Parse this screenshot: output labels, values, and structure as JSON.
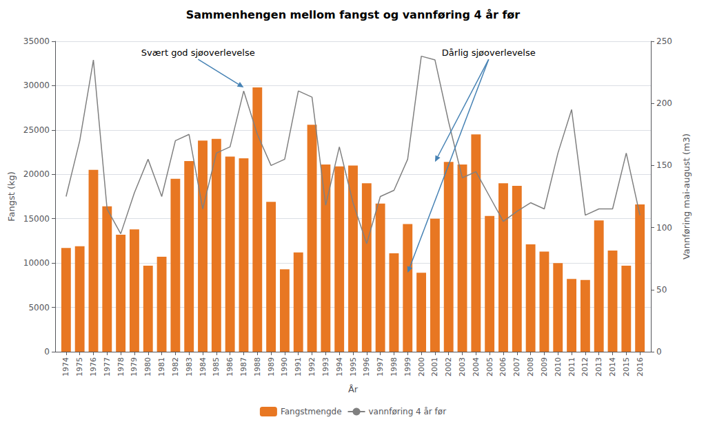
{
  "chart_data": {
    "type": "bar",
    "title": "Sammenhengen mellom fangst og vannføring 4 år før",
    "xlabel": "År",
    "ylabel": "Fangst (kg)",
    "y2label": "Vannføring mai-august (m3)",
    "x": [
      1974,
      1975,
      1976,
      1977,
      1978,
      1979,
      1980,
      1981,
      1982,
      1983,
      1984,
      1985,
      1986,
      1987,
      1988,
      1989,
      1990,
      1991,
      1992,
      1993,
      1994,
      1995,
      1996,
      1997,
      1998,
      1999,
      2000,
      2001,
      2002,
      2003,
      2004,
      2005,
      2006,
      2007,
      2008,
      2009,
      2010,
      2011,
      2012,
      2013,
      2014,
      2015,
      2016
    ],
    "xlim": [
      1973.2,
      2016.8
    ],
    "xticks": [
      1974,
      1975,
      1976,
      1977,
      1978,
      1979,
      1980,
      1981,
      1982,
      1983,
      1984,
      1985,
      1986,
      1987,
      1988,
      1989,
      1990,
      1991,
      1992,
      1993,
      1994,
      1995,
      1996,
      1997,
      1998,
      1999,
      2000,
      2001,
      2002,
      2003,
      2004,
      2005,
      2006,
      2007,
      2008,
      2009,
      2010,
      2011,
      2012,
      2013,
      2014,
      2015,
      2016
    ],
    "ylim": [
      0,
      35000
    ],
    "yticks": [
      0,
      5000,
      10000,
      15000,
      20000,
      25000,
      30000,
      35000
    ],
    "y2lim": [
      0,
      250
    ],
    "y2ticks": [
      0,
      50,
      100,
      150,
      200,
      250
    ],
    "grid": true,
    "legend": "bottom",
    "series": [
      {
        "name": "Fangstmengde",
        "type": "bar",
        "color": "#E87722",
        "values": [
          11700,
          11900,
          20500,
          16400,
          13200,
          13800,
          9700,
          10700,
          19500,
          21500,
          23800,
          24000,
          22000,
          21800,
          29800,
          16900,
          9300,
          11200,
          25600,
          21100,
          20900,
          21000,
          19000,
          16700,
          11100,
          14400,
          8900,
          15000,
          21400,
          21100,
          24500,
          15300,
          19000,
          18700,
          12100,
          11300,
          10000,
          8200,
          8100,
          14800,
          11400,
          9700,
          16600
        ]
      },
      {
        "name": "vannføring 4 år før",
        "type": "line",
        "color": "#808080",
        "axis": "y2",
        "values": [
          125,
          170,
          235,
          115,
          95,
          128,
          155,
          125,
          170,
          175,
          115,
          160,
          165,
          210,
          175,
          150,
          155,
          210,
          205,
          118,
          165,
          120,
          87,
          125,
          130,
          155,
          238,
          235,
          185,
          140,
          145,
          125,
          105,
          113,
          120,
          115,
          160,
          195,
          110,
          115,
          115,
          160,
          110
        ]
      }
    ],
    "annotations": [
      {
        "text": "Svært god sjøoverlevelse",
        "x": 1979.5,
        "y": 33200,
        "color": "steelblue",
        "arrows": [
          [
            1987,
            29800
          ]
        ]
      },
      {
        "text": "Dårlig sjøoverlevelse",
        "x": 2001.5,
        "y": 33200,
        "color": "steelblue",
        "arrows": [
          [
            1999,
            8900
          ],
          [
            2001,
            21400
          ]
        ]
      }
    ]
  }
}
